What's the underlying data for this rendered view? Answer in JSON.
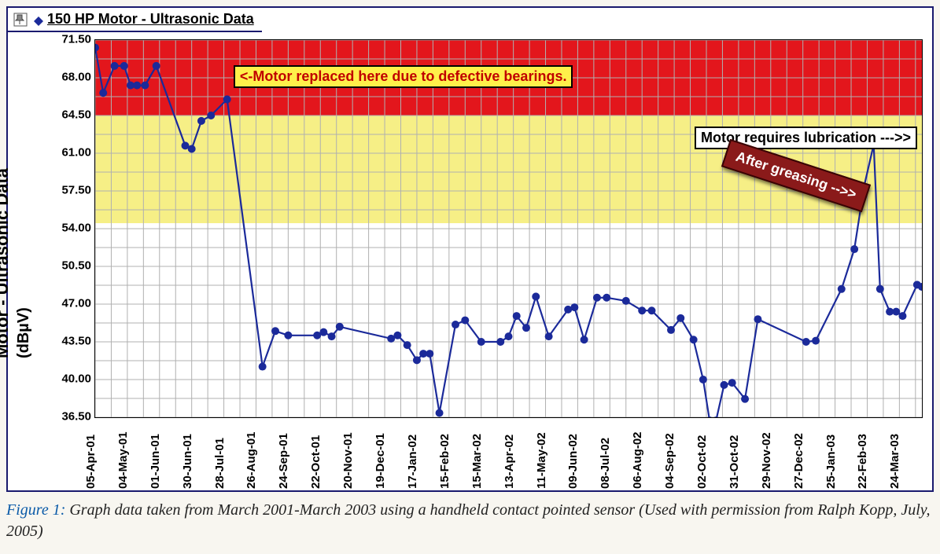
{
  "title": "150 HP Motor - Ultrasonic Data",
  "y_axis": {
    "label": "Motor - Ultrasonic Data",
    "sublabel": "(dBµV)",
    "min": 36.5,
    "max": 71.5,
    "tick_step": 3.5,
    "ticks": [
      "71.50",
      "68.00",
      "64.50",
      "61.00",
      "57.50",
      "54.00",
      "50.50",
      "47.00",
      "43.50",
      "40.00",
      "36.50"
    ],
    "tick_fontsize": 15,
    "label_fontsize": 22
  },
  "x_axis": {
    "labels": [
      "05-Apr-01",
      "04-May-01",
      "01-Jun-01",
      "30-Jun-01",
      "28-Jul-01",
      "26-Aug-01",
      "24-Sep-01",
      "22-Oct-01",
      "20-Nov-01",
      "19-Dec-01",
      "17-Jan-02",
      "15-Feb-02",
      "15-Mar-02",
      "13-Apr-02",
      "11-May-02",
      "09-Jun-02",
      "08-Jul-02",
      "06-Aug-02",
      "04-Sep-02",
      "02-Oct-02",
      "31-Oct-02",
      "29-Nov-02",
      "27-Dec-02",
      "25-Jan-03",
      "22-Feb-03",
      "24-Mar-03"
    ],
    "label_fontsize": 15
  },
  "bands": {
    "red": {
      "y_from": 64.5,
      "y_to": 71.5,
      "color": "#e3161c"
    },
    "yellow": {
      "y_from": 54.5,
      "y_to": 64.5,
      "color": "#f6ef86"
    }
  },
  "grid": {
    "color": "#b0b0b0",
    "minor_y_step": 1.75,
    "minor_x_step": 0.5
  },
  "series": {
    "name": "Ultrasonic dBµV",
    "color": "#1b2a9a",
    "marker": "circle",
    "marker_size": 5,
    "line_width": 2.2,
    "points": [
      {
        "x": 0.0,
        "y": 70.8
      },
      {
        "x": 0.25,
        "y": 66.6
      },
      {
        "x": 0.6,
        "y": 69.1
      },
      {
        "x": 0.9,
        "y": 69.1
      },
      {
        "x": 1.1,
        "y": 67.3
      },
      {
        "x": 1.3,
        "y": 67.3
      },
      {
        "x": 1.55,
        "y": 67.3
      },
      {
        "x": 1.9,
        "y": 69.1
      },
      {
        "x": 2.8,
        "y": 61.7
      },
      {
        "x": 3.0,
        "y": 61.4
      },
      {
        "x": 3.3,
        "y": 64.0
      },
      {
        "x": 3.6,
        "y": 64.5
      },
      {
        "x": 4.1,
        "y": 66.0
      },
      {
        "x": 5.2,
        "y": 41.2
      },
      {
        "x": 5.6,
        "y": 44.5
      },
      {
        "x": 6.0,
        "y": 44.1
      },
      {
        "x": 6.9,
        "y": 44.1
      },
      {
        "x": 7.1,
        "y": 44.4
      },
      {
        "x": 7.35,
        "y": 44.0
      },
      {
        "x": 7.6,
        "y": 44.9
      },
      {
        "x": 9.2,
        "y": 43.8
      },
      {
        "x": 9.4,
        "y": 44.1
      },
      {
        "x": 9.7,
        "y": 43.2
      },
      {
        "x": 10.0,
        "y": 41.8
      },
      {
        "x": 10.2,
        "y": 42.4
      },
      {
        "x": 10.4,
        "y": 42.4
      },
      {
        "x": 10.7,
        "y": 36.9
      },
      {
        "x": 11.2,
        "y": 45.1
      },
      {
        "x": 11.5,
        "y": 45.5
      },
      {
        "x": 12.0,
        "y": 43.5
      },
      {
        "x": 12.6,
        "y": 43.5
      },
      {
        "x": 12.85,
        "y": 44.0
      },
      {
        "x": 13.1,
        "y": 45.9
      },
      {
        "x": 13.4,
        "y": 44.8
      },
      {
        "x": 13.7,
        "y": 47.7
      },
      {
        "x": 14.1,
        "y": 44.0
      },
      {
        "x": 14.7,
        "y": 46.5
      },
      {
        "x": 14.9,
        "y": 46.7
      },
      {
        "x": 15.2,
        "y": 43.7
      },
      {
        "x": 15.6,
        "y": 47.6
      },
      {
        "x": 15.9,
        "y": 47.6
      },
      {
        "x": 16.5,
        "y": 47.3
      },
      {
        "x": 17.0,
        "y": 46.4
      },
      {
        "x": 17.3,
        "y": 46.4
      },
      {
        "x": 17.9,
        "y": 44.6
      },
      {
        "x": 18.2,
        "y": 45.7
      },
      {
        "x": 18.6,
        "y": 43.7
      },
      {
        "x": 18.9,
        "y": 40.0
      },
      {
        "x": 19.1,
        "y": 36.2
      },
      {
        "x": 19.3,
        "y": 36.2
      },
      {
        "x": 19.55,
        "y": 39.5
      },
      {
        "x": 19.8,
        "y": 39.7
      },
      {
        "x": 20.2,
        "y": 38.2
      },
      {
        "x": 20.6,
        "y": 45.6
      },
      {
        "x": 22.1,
        "y": 43.5
      },
      {
        "x": 22.4,
        "y": 43.6
      },
      {
        "x": 23.2,
        "y": 48.4
      },
      {
        "x": 23.6,
        "y": 52.1
      },
      {
        "x": 23.9,
        "y": 57.9
      },
      {
        "x": 24.2,
        "y": 61.8
      },
      {
        "x": 24.4,
        "y": 48.4
      },
      {
        "x": 24.7,
        "y": 46.3
      },
      {
        "x": 24.9,
        "y": 46.3
      },
      {
        "x": 25.1,
        "y": 45.9
      },
      {
        "x": 25.55,
        "y": 48.8
      },
      {
        "x": 25.7,
        "y": 48.6
      }
    ]
  },
  "annotations": {
    "replaced": {
      "text": "<-Motor replaced here due to defective bearings.",
      "bg": "#fff04a",
      "text_color": "#c00000",
      "border": "#000000",
      "fontsize": 18
    },
    "lubrication": {
      "text": "Motor requires lubrication --->>",
      "bg": "#ffffff",
      "text_color": "#000000",
      "border": "#000000",
      "fontsize": 18
    },
    "after_greasing": {
      "text": "After greasing -->>",
      "bg": "#8a1a1a",
      "text_color": "#ffffff",
      "fontsize": 18,
      "rotate_deg": 18
    }
  },
  "caption": {
    "label": "Figure 1:",
    "text": "Graph data taken from March 2001-March 2003 using a handheld contact pointed sensor (Used with permission from Ralph Kopp, July, 2005)",
    "label_color": "#0a5aa8",
    "fontsize": 20
  },
  "colors": {
    "frame": "#1a1a6e",
    "background": "#ffffff",
    "page_bg": "#f8f6f0"
  },
  "icons": {
    "pin": "pin-icon",
    "diamond": "diamond-icon"
  }
}
